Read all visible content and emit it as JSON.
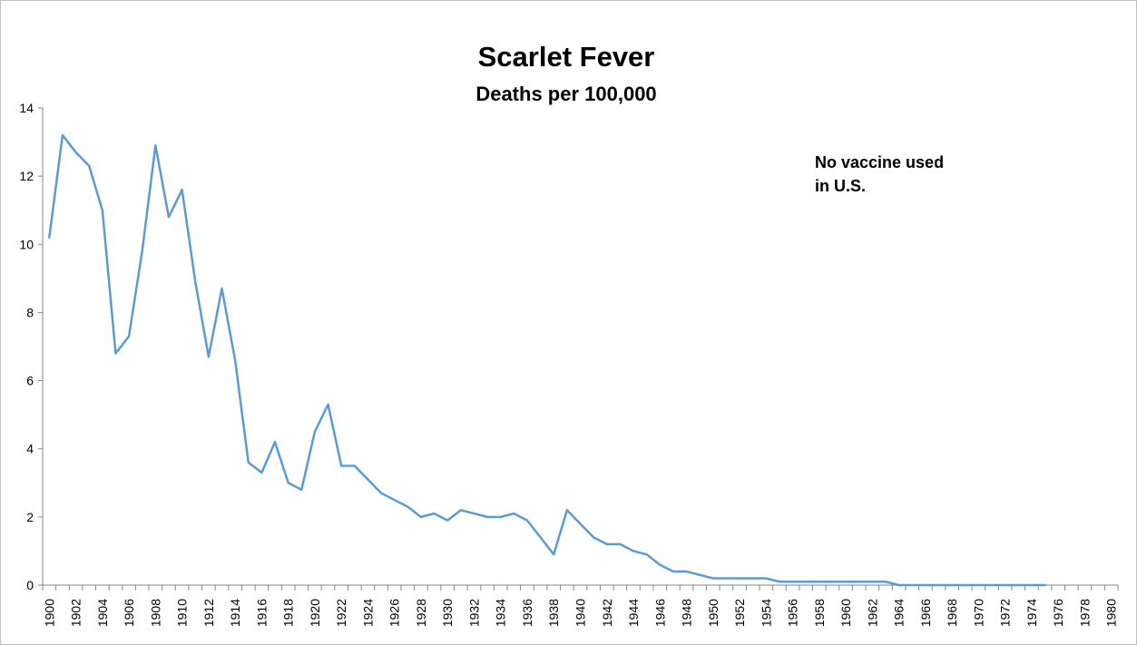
{
  "chart_data": {
    "type": "line",
    "title": "Scarlet Fever",
    "subtitle": "Deaths per 100,000",
    "annotation": [
      "No vaccine used",
      "in U.S."
    ],
    "xlabel": "",
    "ylabel": "",
    "ylim": [
      0,
      14
    ],
    "yticks": [
      0,
      2,
      4,
      6,
      8,
      10,
      12,
      14
    ],
    "xlim": [
      1900,
      1980
    ],
    "xticks": [
      "1900",
      "1902",
      "1904",
      "1906",
      "1908",
      "1910",
      "1912",
      "1914",
      "1916",
      "1918",
      "1920",
      "1922",
      "1924",
      "1926",
      "1928",
      "1930",
      "1932",
      "1934",
      "1936",
      "1938",
      "1940",
      "1942",
      "1944",
      "1946",
      "1948",
      "1950",
      "1952",
      "1954",
      "1956",
      "1958",
      "1960",
      "1962",
      "1964",
      "1966",
      "1968",
      "1970",
      "1972",
      "1974",
      "1976",
      "1978",
      "1980"
    ],
    "line_color": "#5b9bd5",
    "series": [
      {
        "name": "Scarlet Fever deaths per 100,000",
        "x": [
          1900,
          1901,
          1902,
          1903,
          1904,
          1905,
          1906,
          1907,
          1908,
          1909,
          1910,
          1911,
          1912,
          1913,
          1914,
          1915,
          1916,
          1917,
          1918,
          1919,
          1920,
          1921,
          1922,
          1923,
          1924,
          1925,
          1926,
          1927,
          1928,
          1929,
          1930,
          1931,
          1932,
          1933,
          1934,
          1935,
          1936,
          1937,
          1938,
          1939,
          1940,
          1941,
          1942,
          1943,
          1944,
          1945,
          1946,
          1947,
          1948,
          1949,
          1950,
          1951,
          1952,
          1953,
          1954,
          1955,
          1956,
          1957,
          1958,
          1959,
          1960,
          1961,
          1962,
          1963,
          1964,
          1965,
          1966,
          1967,
          1968,
          1969,
          1970,
          1971,
          1972,
          1973,
          1974,
          1975
        ],
        "values": [
          10.2,
          13.2,
          12.7,
          12.3,
          11.0,
          6.8,
          7.3,
          9.8,
          12.9,
          10.8,
          11.6,
          8.9,
          6.7,
          8.7,
          6.6,
          3.6,
          3.3,
          4.2,
          3.0,
          2.8,
          4.5,
          5.3,
          3.5,
          3.5,
          3.1,
          2.7,
          2.5,
          2.3,
          2.0,
          2.1,
          1.9,
          2.2,
          2.1,
          2.0,
          2.0,
          2.1,
          1.9,
          1.4,
          0.9,
          2.2,
          1.8,
          1.4,
          1.2,
          1.2,
          1.0,
          0.9,
          0.6,
          0.4,
          0.4,
          0.3,
          0.2,
          0.2,
          0.2,
          0.2,
          0.2,
          0.1,
          0.1,
          0.1,
          0.1,
          0.1,
          0.1,
          0.1,
          0.1,
          0.1,
          0.0,
          0.0,
          0.0,
          0.0,
          0.0,
          0.0,
          0.0,
          0.0,
          0.0,
          0.0,
          0.0,
          0.0
        ]
      }
    ]
  }
}
